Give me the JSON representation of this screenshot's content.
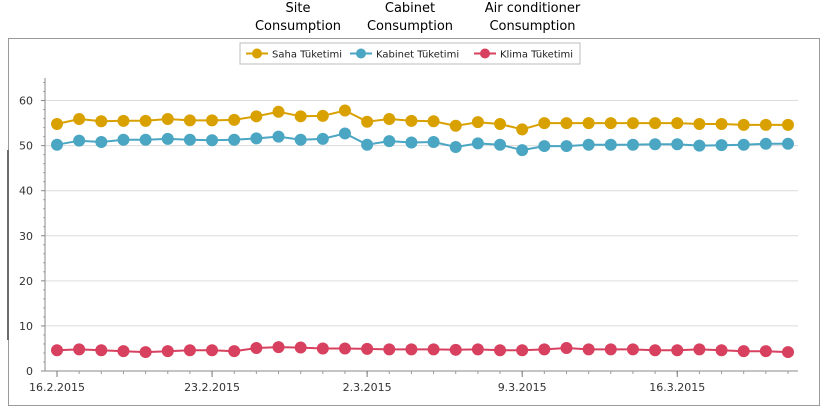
{
  "captions": [
    {
      "line1": "Site",
      "line2": "Consumption"
    },
    {
      "line1": "Cabinet",
      "line2": "Consumption"
    },
    {
      "line1": "Air conditioner",
      "line2": "Consumption"
    }
  ],
  "chart_data": {
    "type": "line",
    "title": "",
    "xlabel": "",
    "ylabel": "",
    "ylim": [
      0,
      65
    ],
    "y_ticks": [
      0,
      10,
      20,
      30,
      40,
      50,
      60
    ],
    "grid": true,
    "legend_position": "top-center",
    "x_tick_labels": [
      {
        "date": "2015-02-16",
        "label": "16.2.2015"
      },
      {
        "date": "2015-02-23",
        "label": "23.2.2015"
      },
      {
        "date": "2015-03-02",
        "label": "2.3.2015"
      },
      {
        "date": "2015-03-09",
        "label": "9.3.2015"
      },
      {
        "date": "2015-03-16",
        "label": "16.3.2015"
      }
    ],
    "x": [
      "2015-02-16",
      "2015-02-17",
      "2015-02-18",
      "2015-02-19",
      "2015-02-20",
      "2015-02-21",
      "2015-02-22",
      "2015-02-23",
      "2015-02-24",
      "2015-02-25",
      "2015-02-26",
      "2015-02-27",
      "2015-02-28",
      "2015-03-01",
      "2015-03-02",
      "2015-03-03",
      "2015-03-04",
      "2015-03-05",
      "2015-03-06",
      "2015-03-07",
      "2015-03-08",
      "2015-03-09",
      "2015-03-10",
      "2015-03-11",
      "2015-03-12",
      "2015-03-13",
      "2015-03-14",
      "2015-03-15",
      "2015-03-16",
      "2015-03-17",
      "2015-03-18",
      "2015-03-19",
      "2015-03-20",
      "2015-03-21"
    ],
    "series": [
      {
        "name": "Saha Tüketimi",
        "color": "#d9a100",
        "values": [
          54.8,
          55.9,
          55.4,
          55.5,
          55.5,
          55.9,
          55.6,
          55.6,
          55.7,
          56.5,
          57.5,
          56.5,
          56.6,
          57.8,
          55.3,
          55.9,
          55.5,
          55.4,
          54.4,
          55.2,
          54.8,
          53.6,
          55.0,
          55.0,
          55.0,
          55.0,
          55.0,
          55.0,
          55.0,
          54.8,
          54.8,
          54.6,
          54.6,
          54.6
        ]
      },
      {
        "name": "Kabinet Tüketimi",
        "color": "#4aa6c2",
        "values": [
          50.2,
          51.1,
          50.8,
          51.3,
          51.3,
          51.5,
          51.3,
          51.2,
          51.3,
          51.6,
          52.0,
          51.3,
          51.5,
          52.7,
          50.2,
          51.0,
          50.7,
          50.8,
          49.7,
          50.5,
          50.2,
          49.0,
          49.9,
          49.9,
          50.2,
          50.2,
          50.2,
          50.3,
          50.3,
          50.0,
          50.1,
          50.2,
          50.4,
          50.4
        ]
      },
      {
        "name": "Klima Tüketimi",
        "color": "#d8405f",
        "values": [
          4.6,
          4.8,
          4.6,
          4.4,
          4.2,
          4.4,
          4.6,
          4.6,
          4.4,
          5.1,
          5.3,
          5.2,
          5.0,
          5.0,
          4.9,
          4.8,
          4.8,
          4.8,
          4.7,
          4.8,
          4.6,
          4.6,
          4.8,
          5.1,
          4.8,
          4.8,
          4.8,
          4.6,
          4.6,
          4.8,
          4.6,
          4.4,
          4.4,
          4.2
        ]
      }
    ]
  }
}
